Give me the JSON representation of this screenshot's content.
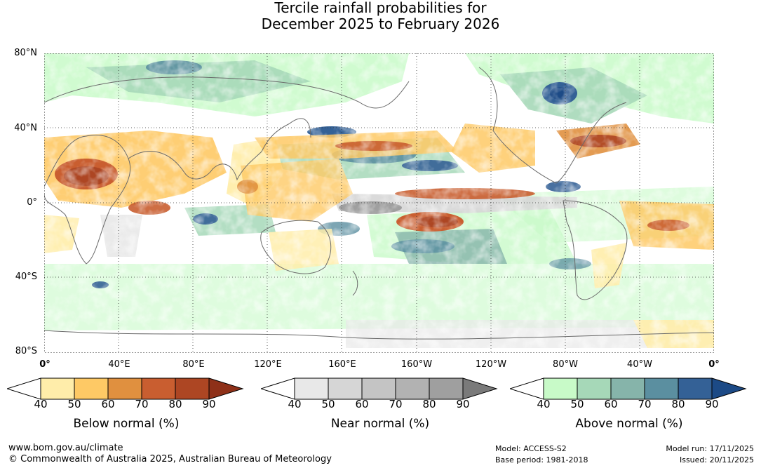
{
  "title": {
    "line1": "Tercile rainfall probabilities for",
    "line2": "December 2025 to February 2026"
  },
  "map": {
    "lat_labels": [
      "80°N",
      "40°N",
      "0°",
      "40°S",
      "80°S"
    ],
    "lon_labels": [
      "0°",
      "40°E",
      "80°E",
      "120°E",
      "160°E",
      "160°W",
      "120°W",
      "80°W",
      "40°W",
      "0°"
    ]
  },
  "legends": [
    {
      "name": "below",
      "caption": "Below normal (%)",
      "ticks": [
        "40",
        "50",
        "60",
        "70",
        "80",
        "90"
      ],
      "colors": [
        "#ffffff",
        "#ffedaa",
        "#fec965",
        "#e0903f",
        "#c95e30",
        "#ad4623",
        "#8e3018"
      ]
    },
    {
      "name": "near",
      "caption": "Near normal (%)",
      "ticks": [
        "40",
        "50",
        "60",
        "70",
        "80",
        "90"
      ],
      "colors": [
        "#ffffff",
        "#e8e8e8",
        "#d6d6d6",
        "#c4c4c4",
        "#b2b2b2",
        "#9f9f9f",
        "#7a7a7a"
      ]
    },
    {
      "name": "above",
      "caption": "Above normal (%)",
      "ticks": [
        "40",
        "50",
        "60",
        "70",
        "80",
        "90"
      ],
      "colors": [
        "#ffffff",
        "#c8fac8",
        "#a6d8b8",
        "#86b4aa",
        "#5b8fa0",
        "#346196",
        "#1c4a86"
      ]
    }
  ],
  "footer": {
    "website": "www.bom.gov.au/climate",
    "copyright": "© Commonwealth of Australia 2025, Australian Bureau of Meteorology",
    "model": "Model: ACCESS-S2",
    "base_period": "Base period: 1981-2018",
    "model_run": "Model run: 17/11/2025",
    "issued": "Issued: 20/11/2025"
  }
}
